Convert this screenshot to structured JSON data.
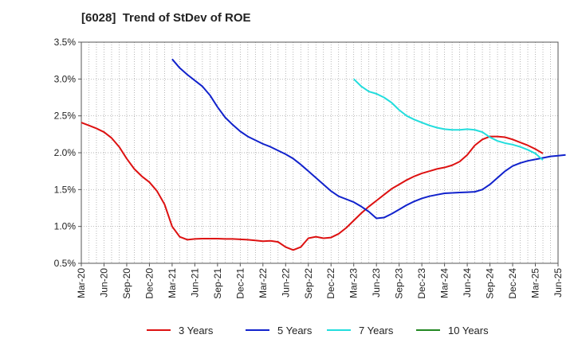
{
  "chart_data": {
    "type": "line",
    "title": "[6028]  Trend of StDev of ROE",
    "xlabel": "",
    "ylabel": "",
    "x_ticks": [
      "Mar-20",
      "Jun-20",
      "Sep-20",
      "Dec-20",
      "Mar-21",
      "Jun-21",
      "Sep-21",
      "Dec-21",
      "Mar-22",
      "Jun-22",
      "Sep-22",
      "Dec-22",
      "Mar-23",
      "Jun-23",
      "Sep-23",
      "Dec-23",
      "Mar-24",
      "Jun-24",
      "Sep-24",
      "Dec-24",
      "Mar-25",
      "Jun-25"
    ],
    "y_ticks": [
      "0.5%",
      "1.0%",
      "1.5%",
      "2.0%",
      "2.5%",
      "3.0%",
      "3.5%"
    ],
    "ylim": [
      0.5,
      3.5
    ],
    "grid": true,
    "legend_position": "bottom",
    "series": [
      {
        "name": "3 Years",
        "color": "#dd1111",
        "start_index": 0,
        "values": [
          2.41,
          2.37,
          2.33,
          2.28,
          2.2,
          2.08,
          1.92,
          1.78,
          1.68,
          1.6,
          1.48,
          1.3,
          1.0,
          0.86,
          0.82,
          0.83,
          0.835,
          0.835,
          0.835,
          0.83,
          0.83,
          0.825,
          0.82,
          0.81,
          0.8,
          0.805,
          0.79,
          0.72,
          0.68,
          0.72,
          0.84,
          0.86,
          0.84,
          0.85,
          0.9,
          0.98,
          1.08,
          1.18,
          1.27,
          1.35,
          1.43,
          1.51,
          1.57,
          1.63,
          1.68,
          1.72,
          1.75,
          1.78,
          1.8,
          1.83,
          1.88,
          1.97,
          2.1,
          2.18,
          2.22,
          2.22,
          2.21,
          2.18,
          2.14,
          2.1,
          2.05,
          1.99
        ]
      },
      {
        "name": "5 Years",
        "color": "#1122cc",
        "start_index": 12,
        "values": [
          3.27,
          3.15,
          3.06,
          2.98,
          2.9,
          2.78,
          2.62,
          2.48,
          2.38,
          2.29,
          2.22,
          2.17,
          2.12,
          2.08,
          2.03,
          1.98,
          1.92,
          1.84,
          1.75,
          1.66,
          1.57,
          1.48,
          1.41,
          1.37,
          1.33,
          1.27,
          1.2,
          1.11,
          1.12,
          1.17,
          1.23,
          1.29,
          1.34,
          1.38,
          1.41,
          1.43,
          1.45,
          1.455,
          1.46,
          1.465,
          1.47,
          1.5,
          1.57,
          1.66,
          1.75,
          1.82,
          1.86,
          1.89,
          1.91,
          1.93,
          1.95,
          1.96,
          1.97
        ]
      },
      {
        "name": "7 Years",
        "color": "#22dddd",
        "start_index": 36,
        "values": [
          3.0,
          2.9,
          2.83,
          2.8,
          2.75,
          2.68,
          2.58,
          2.5,
          2.45,
          2.41,
          2.37,
          2.34,
          2.32,
          2.31,
          2.31,
          2.32,
          2.31,
          2.28,
          2.21,
          2.16,
          2.13,
          2.11,
          2.08,
          2.04,
          1.99,
          1.9
        ]
      },
      {
        "name": "10 Years",
        "color": "#228822",
        "start_index": 0,
        "values": []
      }
    ]
  }
}
